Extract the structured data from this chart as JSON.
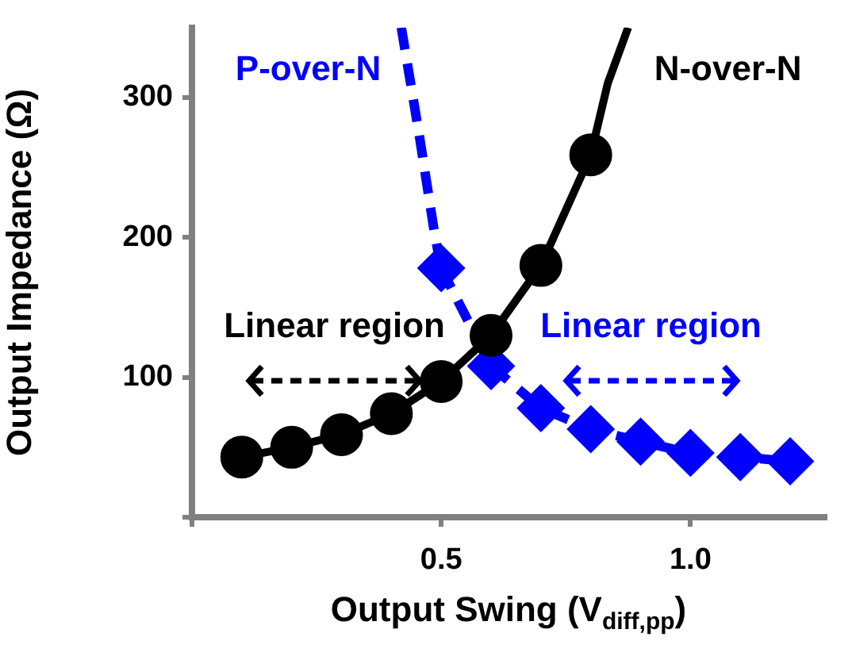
{
  "chart_data": {
    "type": "line",
    "xlabel": "Output Swing (V$_{diff,pp}$)",
    "ylabel": "Output Impedance (Ω)",
    "xlim": [
      0,
      1.27
    ],
    "xticks": [
      {
        "value": 0,
        "label": null
      },
      0.5,
      {
        "value": 1,
        "label": "1.0"
      }
    ],
    "ylim": [
      0,
      350
    ],
    "yticks": [
      {
        "value": 0,
        "label": null
      },
      100,
      200,
      300
    ],
    "grid": false,
    "legend": false,
    "series": [
      {
        "name": "N-over-N",
        "color": "#000000",
        "x": [
          0.1,
          0.2,
          0.3,
          0.4,
          0.5,
          0.6,
          0.7,
          0.8
        ],
        "values": [
          43,
          50,
          59,
          74,
          97,
          130,
          180,
          259
        ],
        "marker": "circle",
        "line_style": "solid"
      },
      {
        "name": "P-over-N",
        "color": "#0000ff",
        "x": [
          0.5,
          0.6,
          0.7,
          0.8,
          0.9,
          1.0,
          1.1,
          1.2
        ],
        "values": [
          178,
          108,
          78,
          63,
          54,
          46,
          43,
          40
        ],
        "marker": "diamond",
        "line_style": "dashed"
      },
      {
        "color": "#000000",
        "x": [
          0.8,
          0.834,
          0.875
        ],
        "values": [
          259,
          310,
          350
        ],
        "marker": "none",
        "line_style": "solid"
      },
      {
        "color": "#0000ff",
        "x": [
          0.42,
          0.456,
          0.487,
          0.5
        ],
        "values": [
          350,
          273,
          202,
          178
        ],
        "marker": "none",
        "line_style": "dashed"
      }
    ],
    "annotations": [
      "Linear region",
      "Linear region"
    ]
  }
}
